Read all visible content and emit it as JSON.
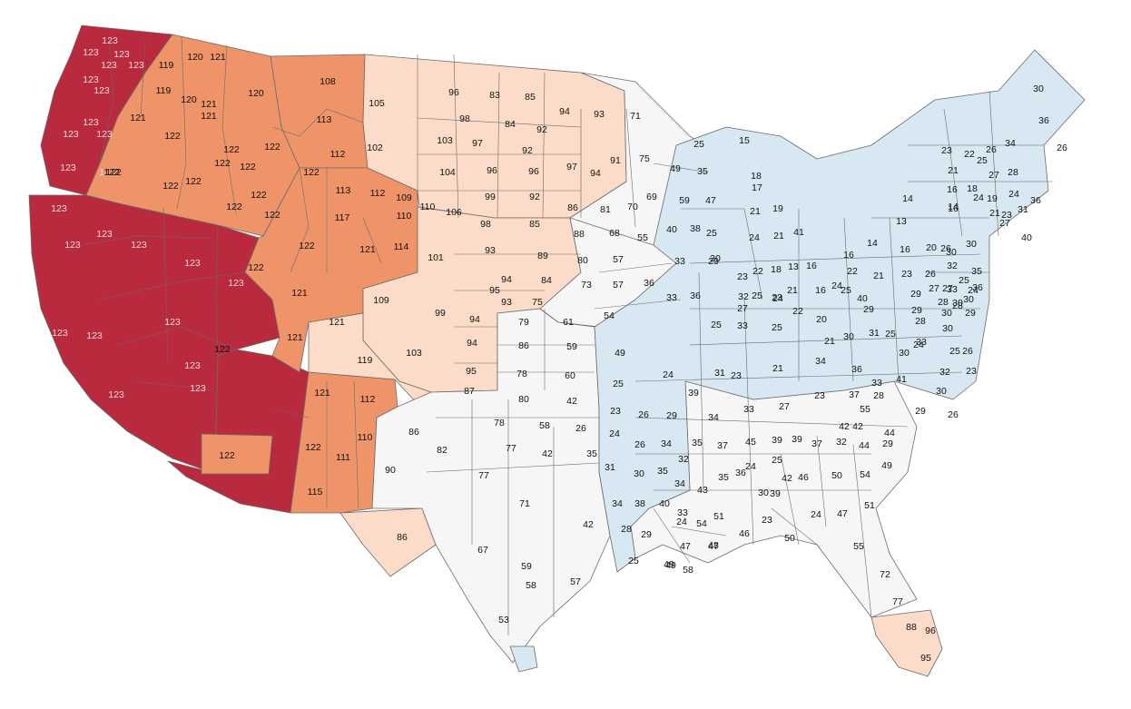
{
  "map": {
    "colors": {
      "dark_red": "#b92a3e",
      "orange": "#ef9468",
      "peach": "#fcdcc9",
      "white": "#f6f6f6",
      "light_blue": "#d7e8f3",
      "border": "#6b6b6b"
    },
    "regions": [
      {
        "name": "pacific-northwest",
        "color": "dark_red"
      },
      {
        "name": "california-nevada",
        "color": "dark_red"
      },
      {
        "name": "arizona-southwest",
        "color": "dark_red"
      },
      {
        "name": "inland-northwest",
        "color": "orange"
      },
      {
        "name": "montana-wyoming",
        "color": "orange"
      },
      {
        "name": "colorado-utah",
        "color": "orange"
      },
      {
        "name": "new-mexico-west",
        "color": "orange"
      },
      {
        "name": "arizona-enclave",
        "color": "orange"
      },
      {
        "name": "great-plains-north",
        "color": "peach"
      },
      {
        "name": "plains-central",
        "color": "peach"
      },
      {
        "name": "southern-colorado-nm",
        "color": "peach"
      },
      {
        "name": "west-texas",
        "color": "peach"
      },
      {
        "name": "florida-south",
        "color": "peach"
      },
      {
        "name": "texas-oklahoma",
        "color": "white"
      },
      {
        "name": "upper-midwest",
        "color": "white"
      },
      {
        "name": "kansas-missouri",
        "color": "white"
      },
      {
        "name": "southeast",
        "color": "white"
      },
      {
        "name": "eastern-us",
        "color": "light_blue"
      },
      {
        "name": "gulf-coast-tip",
        "color": "light_blue"
      }
    ],
    "labels": [
      {
        "t": "123",
        "dark": true
      },
      {
        "t": "123",
        "dark": true
      },
      {
        "t": "123",
        "dark": true
      },
      {
        "t": "123",
        "dark": true
      },
      {
        "t": "123",
        "dark": true
      },
      {
        "t": "123",
        "dark": true
      },
      {
        "t": "123",
        "dark": true
      },
      {
        "t": "123",
        "dark": true
      },
      {
        "t": "123",
        "dark": true
      },
      {
        "t": "123",
        "dark": true
      },
      {
        "t": "123",
        "dark": true
      },
      {
        "t": "123",
        "dark": true
      },
      {
        "t": "123",
        "dark": true
      },
      {
        "t": "123",
        "dark": true
      },
      {
        "t": "123",
        "dark": true
      },
      {
        "t": "123",
        "dark": true
      },
      {
        "t": "123",
        "dark": true
      },
      {
        "t": "123",
        "dark": true
      },
      {
        "t": "123",
        "dark": true
      },
      {
        "t": "123",
        "dark": true
      },
      {
        "t": "123",
        "dark": true
      },
      {
        "t": "123",
        "dark": true
      },
      {
        "t": "123",
        "dark": true
      },
      {
        "t": "123",
        "dark": true
      },
      {
        "t": "119"
      },
      {
        "t": "120"
      },
      {
        "t": "121"
      },
      {
        "t": "119"
      },
      {
        "t": "120"
      },
      {
        "t": "121"
      },
      {
        "t": "121"
      },
      {
        "t": "121"
      },
      {
        "t": "120"
      },
      {
        "t": "122"
      },
      {
        "t": "122"
      },
      {
        "t": "122"
      },
      {
        "t": "122"
      },
      {
        "t": "122"
      },
      {
        "t": "122"
      },
      {
        "t": "122"
      },
      {
        "t": "122"
      },
      {
        "t": "122"
      },
      {
        "t": "122"
      },
      {
        "t": "122"
      },
      {
        "t": "122"
      },
      {
        "t": "122"
      },
      {
        "t": "122"
      },
      {
        "t": "122"
      },
      {
        "t": "113"
      },
      {
        "t": "112"
      },
      {
        "t": "113"
      },
      {
        "t": "112"
      },
      {
        "t": "117"
      },
      {
        "t": "122"
      },
      {
        "t": "121"
      },
      {
        "t": "114"
      },
      {
        "t": "121"
      },
      {
        "t": "121"
      },
      {
        "t": "121"
      },
      {
        "t": "119"
      },
      {
        "t": "121"
      },
      {
        "t": "112"
      },
      {
        "t": "122"
      },
      {
        "t": "115"
      },
      {
        "t": "122"
      },
      {
        "t": "108"
      },
      {
        "t": "105"
      },
      {
        "t": "102"
      },
      {
        "t": "109"
      },
      {
        "t": "110"
      },
      {
        "t": "110"
      },
      {
        "t": "101"
      },
      {
        "t": "109"
      },
      {
        "t": "99"
      },
      {
        "t": "103"
      },
      {
        "t": "110"
      },
      {
        "t": "111"
      },
      {
        "t": "86"
      },
      {
        "t": "90"
      },
      {
        "t": "86"
      },
      {
        "t": "96"
      },
      {
        "t": "83"
      },
      {
        "t": "85"
      },
      {
        "t": "98"
      },
      {
        "t": "84"
      },
      {
        "t": "92"
      },
      {
        "t": "94"
      },
      {
        "t": "93"
      },
      {
        "t": "103"
      },
      {
        "t": "97"
      },
      {
        "t": "92"
      },
      {
        "t": "104"
      },
      {
        "t": "96"
      },
      {
        "t": "96"
      },
      {
        "t": "97"
      },
      {
        "t": "94"
      },
      {
        "t": "91"
      },
      {
        "t": "106"
      },
      {
        "t": "99"
      },
      {
        "t": "92"
      },
      {
        "t": "86"
      },
      {
        "t": "98"
      },
      {
        "t": "85"
      },
      {
        "t": "88"
      },
      {
        "t": "93"
      },
      {
        "t": "89"
      },
      {
        "t": "94"
      },
      {
        "t": "84"
      },
      {
        "t": "95"
      },
      {
        "t": "93"
      },
      {
        "t": "94"
      },
      {
        "t": "94"
      },
      {
        "t": "95"
      },
      {
        "t": "87"
      },
      {
        "t": "86"
      },
      {
        "t": "71"
      },
      {
        "t": "75"
      },
      {
        "t": "69"
      },
      {
        "t": "49"
      },
      {
        "t": "81"
      },
      {
        "t": "70"
      },
      {
        "t": "68"
      },
      {
        "t": "55"
      },
      {
        "t": "80"
      },
      {
        "t": "57"
      },
      {
        "t": "73"
      },
      {
        "t": "57"
      },
      {
        "t": "75"
      },
      {
        "t": "54"
      },
      {
        "t": "79"
      },
      {
        "t": "61"
      },
      {
        "t": "59"
      },
      {
        "t": "49"
      },
      {
        "t": "78"
      },
      {
        "t": "60"
      },
      {
        "t": "80"
      },
      {
        "t": "42"
      },
      {
        "t": "78"
      },
      {
        "t": "58"
      },
      {
        "t": "77"
      },
      {
        "t": "42"
      },
      {
        "t": "82"
      },
      {
        "t": "77"
      },
      {
        "t": "71"
      },
      {
        "t": "42"
      },
      {
        "t": "67"
      },
      {
        "t": "58"
      },
      {
        "t": "57"
      },
      {
        "t": "53"
      },
      {
        "t": "59"
      },
      {
        "t": "47"
      },
      {
        "t": "49"
      },
      {
        "t": "55"
      },
      {
        "t": "42"
      },
      {
        "t": "42"
      },
      {
        "t": "44"
      },
      {
        "t": "44"
      },
      {
        "t": "49"
      },
      {
        "t": "50"
      },
      {
        "t": "54"
      },
      {
        "t": "46"
      },
      {
        "t": "42"
      },
      {
        "t": "47"
      },
      {
        "t": "51"
      },
      {
        "t": "46"
      },
      {
        "t": "50"
      },
      {
        "t": "55"
      },
      {
        "t": "72"
      },
      {
        "t": "77"
      },
      {
        "t": "51"
      },
      {
        "t": "54"
      },
      {
        "t": "47"
      },
      {
        "t": "48"
      },
      {
        "t": "49"
      },
      {
        "t": "58"
      },
      {
        "t": "43"
      },
      {
        "t": "88"
      },
      {
        "t": "96"
      },
      {
        "t": "95"
      },
      {
        "t": "30"
      },
      {
        "t": "36"
      },
      {
        "t": "26"
      },
      {
        "t": "23"
      },
      {
        "t": "22"
      },
      {
        "t": "26"
      },
      {
        "t": "34"
      },
      {
        "t": "25"
      },
      {
        "t": "21"
      },
      {
        "t": "27"
      },
      {
        "t": "28"
      },
      {
        "t": "18"
      },
      {
        "t": "16"
      },
      {
        "t": "24"
      },
      {
        "t": "19"
      },
      {
        "t": "24"
      },
      {
        "t": "21"
      },
      {
        "t": "23"
      },
      {
        "t": "31"
      },
      {
        "t": "36"
      },
      {
        "t": "27"
      },
      {
        "t": "40"
      },
      {
        "t": "14"
      },
      {
        "t": "14"
      },
      {
        "t": "16"
      },
      {
        "t": "13"
      },
      {
        "t": "14"
      },
      {
        "t": "16"
      },
      {
        "t": "20"
      },
      {
        "t": "30"
      },
      {
        "t": "26"
      },
      {
        "t": "30"
      },
      {
        "t": "32"
      },
      {
        "t": "35"
      },
      {
        "t": "16"
      },
      {
        "t": "22"
      },
      {
        "t": "21"
      },
      {
        "t": "23"
      },
      {
        "t": "26"
      },
      {
        "t": "27"
      },
      {
        "t": "27"
      },
      {
        "t": "29"
      },
      {
        "t": "30"
      },
      {
        "t": "28"
      },
      {
        "t": "28"
      },
      {
        "t": "33"
      },
      {
        "t": "24"
      },
      {
        "t": "25"
      },
      {
        "t": "30"
      },
      {
        "t": "36"
      },
      {
        "t": "30"
      },
      {
        "t": "29"
      },
      {
        "t": "25"
      },
      {
        "t": "15"
      },
      {
        "t": "35"
      },
      {
        "t": "18"
      },
      {
        "t": "17"
      },
      {
        "t": "21"
      },
      {
        "t": "19"
      },
      {
        "t": "59"
      },
      {
        "t": "47"
      },
      {
        "t": "40"
      },
      {
        "t": "38"
      },
      {
        "t": "25"
      },
      {
        "t": "24"
      },
      {
        "t": "21"
      },
      {
        "t": "41"
      },
      {
        "t": "33"
      },
      {
        "t": "30"
      },
      {
        "t": "29"
      },
      {
        "t": "23"
      },
      {
        "t": "22"
      },
      {
        "t": "18"
      },
      {
        "t": "13"
      },
      {
        "t": "16"
      },
      {
        "t": "36"
      },
      {
        "t": "33"
      },
      {
        "t": "36"
      },
      {
        "t": "32"
      },
      {
        "t": "25"
      },
      {
        "t": "23"
      },
      {
        "t": "21"
      },
      {
        "t": "16"
      },
      {
        "t": "25"
      },
      {
        "t": "24"
      },
      {
        "t": "40"
      },
      {
        "t": "33"
      },
      {
        "t": "25"
      },
      {
        "t": "27"
      },
      {
        "t": "25"
      },
      {
        "t": "24"
      },
      {
        "t": "22"
      },
      {
        "t": "20"
      },
      {
        "t": "29"
      },
      {
        "t": "29"
      },
      {
        "t": "30"
      },
      {
        "t": "31"
      },
      {
        "t": "28"
      },
      {
        "t": "25"
      },
      {
        "t": "21"
      },
      {
        "t": "24"
      },
      {
        "t": "25"
      },
      {
        "t": "30"
      },
      {
        "t": "33"
      },
      {
        "t": "30"
      },
      {
        "t": "26"
      },
      {
        "t": "32"
      },
      {
        "t": "23"
      },
      {
        "t": "23"
      },
      {
        "t": "21"
      },
      {
        "t": "34"
      },
      {
        "t": "36"
      },
      {
        "t": "25"
      },
      {
        "t": "24"
      },
      {
        "t": "39"
      },
      {
        "t": "31"
      },
      {
        "t": "33"
      },
      {
        "t": "37"
      },
      {
        "t": "41"
      },
      {
        "t": "28"
      },
      {
        "t": "29"
      },
      {
        "t": "30"
      },
      {
        "t": "26"
      },
      {
        "t": "23"
      },
      {
        "t": "26"
      },
      {
        "t": "29"
      },
      {
        "t": "34"
      },
      {
        "t": "33"
      },
      {
        "t": "27"
      },
      {
        "t": "23"
      },
      {
        "t": "26"
      },
      {
        "t": "24"
      },
      {
        "t": "26"
      },
      {
        "t": "34"
      },
      {
        "t": "35"
      },
      {
        "t": "37"
      },
      {
        "t": "45"
      },
      {
        "t": "39"
      },
      {
        "t": "39"
      },
      {
        "t": "37"
      },
      {
        "t": "32"
      },
      {
        "t": "29"
      },
      {
        "t": "25"
      },
      {
        "t": "24"
      },
      {
        "t": "35"
      },
      {
        "t": "31"
      },
      {
        "t": "30"
      },
      {
        "t": "35"
      },
      {
        "t": "34"
      },
      {
        "t": "32"
      },
      {
        "t": "35"
      },
      {
        "t": "36"
      },
      {
        "t": "30"
      },
      {
        "t": "39"
      },
      {
        "t": "34"
      },
      {
        "t": "38"
      },
      {
        "t": "40"
      },
      {
        "t": "33"
      },
      {
        "t": "24"
      },
      {
        "t": "28"
      },
      {
        "t": "29"
      },
      {
        "t": "23"
      },
      {
        "t": "24"
      },
      {
        "t": "25"
      }
    ]
  }
}
